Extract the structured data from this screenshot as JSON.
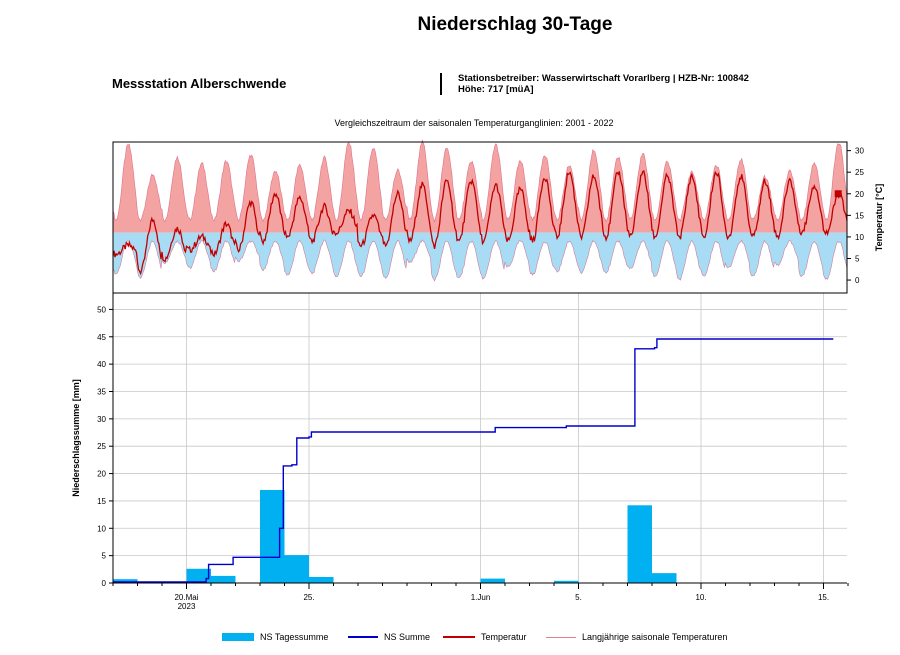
{
  "header": {
    "title": "Niederschlag 30-Tage",
    "station": "Messstation Alberschwende",
    "operator": "Stationsbetreiber: Wasserwirtschaft Vorarlberg | HZB-Nr: 100842",
    "altitude": "Höhe: 717 [müA]",
    "subtitle": "Vergleichszeitraum der saisonalen Temperaturganglinien: 2001 - 2022"
  },
  "legend": {
    "ns_tagessumme": "NS Tagessumme",
    "ns_summe": "NS Summe",
    "temperatur": "Temperatur",
    "langjaehrig": "Langjährige saisonale Temperaturen"
  },
  "colors": {
    "bar": "#00b0f0",
    "sum_line": "#0000cc",
    "temperature": "#c00000",
    "band_upper": "#f4a3a3",
    "band_lower": "#a8dcf5",
    "band_outline": "#d05070",
    "grid": "#c8c8c8"
  },
  "chart_data": [
    {
      "type": "line",
      "name": "temperature",
      "ylabel": "Temperatur [°C]",
      "ylim": [
        -3,
        32
      ],
      "yticks": [
        0,
        5,
        10,
        15,
        20,
        25,
        30
      ],
      "x_range_days": [
        0,
        30
      ],
      "grid": false,
      "diurnal_pattern": {
        "days": 30,
        "long_term_median": 11,
        "long_term_daily_max_range": [
          24,
          32
        ],
        "long_term_daily_min_range": [
          0,
          5
        ],
        "current_daily_max": [
          8,
          14,
          12,
          10,
          13,
          18,
          20,
          19,
          17,
          16,
          15,
          20,
          22,
          23,
          23,
          22,
          21,
          24,
          25,
          24,
          25,
          25,
          24,
          24,
          25,
          24,
          23,
          23,
          22,
          20
        ],
        "current_daily_min": [
          6,
          2,
          5,
          7,
          6,
          7,
          9,
          10,
          9,
          11,
          8,
          8,
          9,
          8,
          9,
          9,
          9,
          9,
          10,
          10,
          10,
          10,
          10,
          10,
          10,
          10,
          10,
          10,
          11,
          11
        ],
        "last_value": 20
      }
    },
    {
      "type": "bar",
      "ylabel": "Niederschlagssumme [mm]",
      "ylim": [
        0,
        53
      ],
      "yticks": [
        0,
        5,
        10,
        15,
        20,
        25,
        30,
        35,
        40,
        45,
        50
      ],
      "grid": true,
      "x_tick_labels": [
        {
          "day": 3,
          "label": "20.Mai",
          "sublabel": "2023"
        },
        {
          "day": 8,
          "label": "25."
        },
        {
          "day": 15,
          "label": "1.Jun"
        },
        {
          "day": 19,
          "label": "5."
        },
        {
          "day": 24,
          "label": "10."
        },
        {
          "day": 29,
          "label": "15."
        }
      ],
      "series": [
        {
          "name": "NS Tagessumme",
          "x": [
            0,
            3,
            4,
            6,
            7,
            8,
            15,
            18,
            21,
            22
          ],
          "values": [
            0.7,
            2.6,
            1.3,
            17,
            5.1,
            1.1,
            0.8,
            0.4,
            14.2,
            1.8
          ]
        },
        {
          "name": "NS Summe",
          "step_points": [
            [
              0,
              0.2
            ],
            [
              3.8,
              0.8
            ],
            [
              3.9,
              3.4
            ],
            [
              4.8,
              3.4
            ],
            [
              4.9,
              4.7
            ],
            [
              6.7,
              4.7
            ],
            [
              6.8,
              10.0
            ],
            [
              6.95,
              21.4
            ],
            [
              7.3,
              21.6
            ],
            [
              7.5,
              26.5
            ],
            [
              8.0,
              26.7
            ],
            [
              8.1,
              27.6
            ],
            [
              15.5,
              27.6
            ],
            [
              15.6,
              28.4
            ],
            [
              18.4,
              28.4
            ],
            [
              18.5,
              28.7
            ],
            [
              21.2,
              28.7
            ],
            [
              21.3,
              42.8
            ],
            [
              22.1,
              43.0
            ],
            [
              22.2,
              44.6
            ],
            [
              29.4,
              44.6
            ]
          ]
        }
      ]
    }
  ]
}
